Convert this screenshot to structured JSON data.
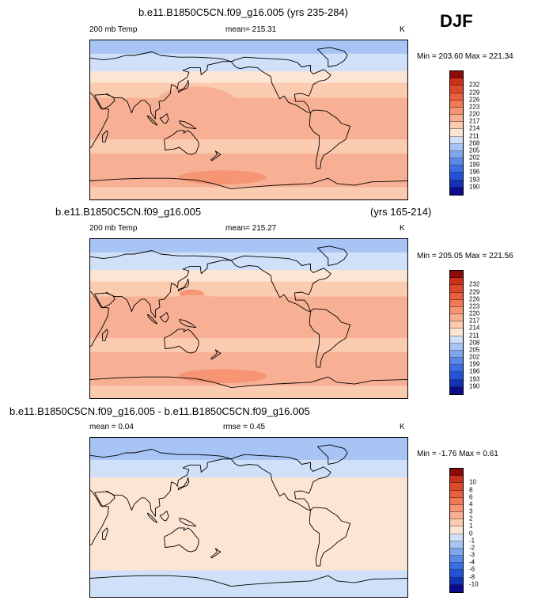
{
  "season_label": "DJF",
  "colors": {
    "ramp": [
      "#0c0c8a",
      "#1432b4",
      "#2352d6",
      "#3a6ee4",
      "#5a8ae8",
      "#7fa6ee",
      "#a8c4f4",
      "#cfe0f8",
      "#fde5d3",
      "#fbcbb0",
      "#f8b094",
      "#f59574",
      "#f07a56",
      "#e86040",
      "#dc4a2c",
      "#c8321c",
      "#8a0c0c"
    ],
    "land_line": "#000000"
  },
  "chart_data": [
    {
      "type": "heatmap",
      "title": "b.e11.B1850C5CN.f09_g16.005 (yrs 235-284)",
      "left_label": "200 mb Temp",
      "stat_label": "mean= 215.31",
      "unit": "K",
      "minmax": "Min = 203.60 Max = 221.34",
      "levels": [
        "190",
        "193",
        "196",
        "199",
        "202",
        "205",
        "208",
        "211",
        "214",
        "217",
        "220",
        "223",
        "226",
        "229",
        "232"
      ],
      "bands": [
        {
          "lat_from": 90,
          "lat_to": 75,
          "value": 205
        },
        {
          "lat_from": 75,
          "lat_to": 55,
          "value": 209
        },
        {
          "lat_from": 55,
          "lat_to": 42,
          "value": 212
        },
        {
          "lat_from": 42,
          "lat_to": 25,
          "value": 215
        },
        {
          "lat_from": 25,
          "lat_to": -22,
          "value": 217
        },
        {
          "lat_from": -22,
          "lat_to": -38,
          "value": 214
        },
        {
          "lat_from": -38,
          "lat_to": -58,
          "value": 217
        },
        {
          "lat_from": -58,
          "lat_to": -76,
          "value": 219
        },
        {
          "lat_from": -76,
          "lat_to": -90,
          "value": 215
        }
      ],
      "blobs": [
        {
          "lon": 150,
          "lat": 20,
          "rlon": 45,
          "rlat": 18,
          "value": 219
        },
        {
          "lon": 180,
          "lat": -65,
          "rlon": 50,
          "rlat": 8,
          "value": 221
        }
      ]
    },
    {
      "type": "heatmap",
      "title": "b.e11.B1850C5CN.f09_g16.005",
      "title_right": "(yrs 165-214)",
      "left_label": "200 mb Temp",
      "stat_label": "mean= 215.27",
      "unit": "K",
      "minmax": "Min = 205.05 Max = 221.56",
      "levels": [
        "190",
        "193",
        "196",
        "199",
        "202",
        "205",
        "208",
        "211",
        "214",
        "217",
        "220",
        "223",
        "226",
        "229",
        "232"
      ],
      "bands": [
        {
          "lat_from": 90,
          "lat_to": 75,
          "value": 206
        },
        {
          "lat_from": 75,
          "lat_to": 55,
          "value": 209
        },
        {
          "lat_from": 55,
          "lat_to": 42,
          "value": 212
        },
        {
          "lat_from": 42,
          "lat_to": 25,
          "value": 215
        },
        {
          "lat_from": 25,
          "lat_to": -22,
          "value": 217
        },
        {
          "lat_from": -22,
          "lat_to": -38,
          "value": 214
        },
        {
          "lat_from": -38,
          "lat_to": -58,
          "value": 217
        },
        {
          "lat_from": -58,
          "lat_to": -76,
          "value": 219
        },
        {
          "lat_from": -76,
          "lat_to": -90,
          "value": 215
        }
      ],
      "blobs": [
        {
          "lon": 145,
          "lat": 28,
          "rlon": 14,
          "rlat": 5,
          "value": 221
        },
        {
          "lon": 150,
          "lat": 12,
          "rlon": 40,
          "rlat": 15,
          "value": 219
        },
        {
          "lon": 180,
          "lat": -65,
          "rlon": 50,
          "rlat": 8,
          "value": 221
        }
      ]
    },
    {
      "type": "heatmap",
      "title": "b.e11.B1850C5CN.f09_g16.005 - b.e11.B1850C5CN.f09_g16.005",
      "left_label": "mean =  0.04",
      "stat_label": "rmse =  0.45",
      "unit": "K",
      "minmax": "Min = -1.76 Max =  0.61",
      "levels": [
        "-10",
        "-8",
        "-6",
        "-4",
        "-3",
        "-2",
        "-1",
        "0",
        "1",
        "2",
        "3",
        "4",
        "6",
        "8",
        "10"
      ],
      "bands": [
        {
          "lat_from": 90,
          "lat_to": 65,
          "value": -1.5
        },
        {
          "lat_from": 65,
          "lat_to": 45,
          "value": -0.5
        },
        {
          "lat_from": 45,
          "lat_to": -60,
          "value": 0.5
        },
        {
          "lat_from": -60,
          "lat_to": -90,
          "value": -0.5
        }
      ],
      "blobs": []
    }
  ]
}
